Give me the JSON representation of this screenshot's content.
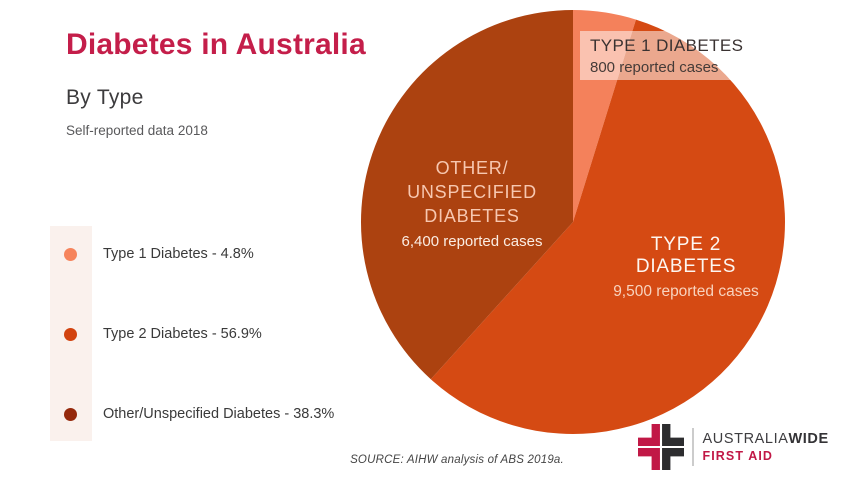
{
  "header": {
    "title": "Diabetes in Australia",
    "subtitle": "By Type",
    "note": "Self-reported data 2018"
  },
  "legend": {
    "items": [
      {
        "label": "Type 1 Diabetes - 4.8%",
        "dot_color": "#F6845C"
      },
      {
        "label": "Type 2 Diabetes - 56.9%",
        "dot_color": "#D2430F"
      },
      {
        "label": "Other/Unspecified Diabetes - 38.3%",
        "dot_color": "#95290C"
      }
    ]
  },
  "chart_data": {
    "type": "pie",
    "title": "Diabetes in Australia",
    "subtitle": "By Type",
    "data_note": "Self-reported data 2018",
    "start_angle_deg": 0,
    "direction": "clockwise",
    "legend_position": "left",
    "slices": [
      {
        "label": "Type 1 Diabetes",
        "percent": 4.8,
        "cases": 800,
        "callout_title": "TYPE 1 DIABETES",
        "callout_cases": "800 reported cases",
        "color": "#F4815B"
      },
      {
        "label": "Type 2 Diabetes",
        "percent": 56.9,
        "cases": 9500,
        "callout_title": "TYPE 2 DIABETES",
        "callout_cases": "9,500 reported cases",
        "color": "#D54A13"
      },
      {
        "label": "Other/Unspecified Diabetes",
        "percent": 38.3,
        "cases": 6400,
        "callout_lines": [
          "OTHER/",
          "UNSPECIFIED",
          "DIABETES"
        ],
        "callout_cases": "6,400 reported cases",
        "color": "#AC4210"
      }
    ]
  },
  "footer": {
    "source": "SOURCE: AIHW analysis of ABS 2019a."
  },
  "logo": {
    "name_regular": "AUSTRALIA",
    "name_bold": "WIDE",
    "tagline": "FIRST AID",
    "cross_red": "#C11846",
    "cross_black": "#2D2D2F"
  }
}
